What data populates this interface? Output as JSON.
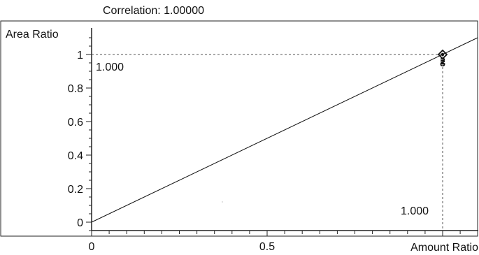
{
  "chart_data": {
    "type": "scatter",
    "title": "Correlation: 1.00000",
    "xlabel": "Amount Ratio",
    "ylabel": "Area Ratio",
    "xlim": [
      0,
      1.1
    ],
    "ylim": [
      -0.05,
      1.12
    ],
    "x_ticks": [
      0,
      0.5
    ],
    "x_tick_labels": [
      "0",
      "0.5"
    ],
    "y_ticks": [
      0,
      0.2,
      0.4,
      0.6,
      0.8,
      1
    ],
    "y_tick_labels": [
      "0",
      "0.2",
      "0.4",
      "0.6",
      "0.8",
      "1"
    ],
    "grid": false,
    "points": [
      {
        "x": 1.0,
        "y": 1.0,
        "label": "2"
      },
      {
        "x": 1.0,
        "y": 1.0,
        "label": "3"
      }
    ],
    "fit_line": {
      "slope": 1.0,
      "intercept": 0.0
    },
    "reference_lines": {
      "x": 1.0,
      "y": 1.0,
      "x_label": "1.000",
      "y_label": "1.000"
    },
    "colors": {
      "line": "#111111",
      "marker": "#111111",
      "reference": "#555555"
    }
  }
}
